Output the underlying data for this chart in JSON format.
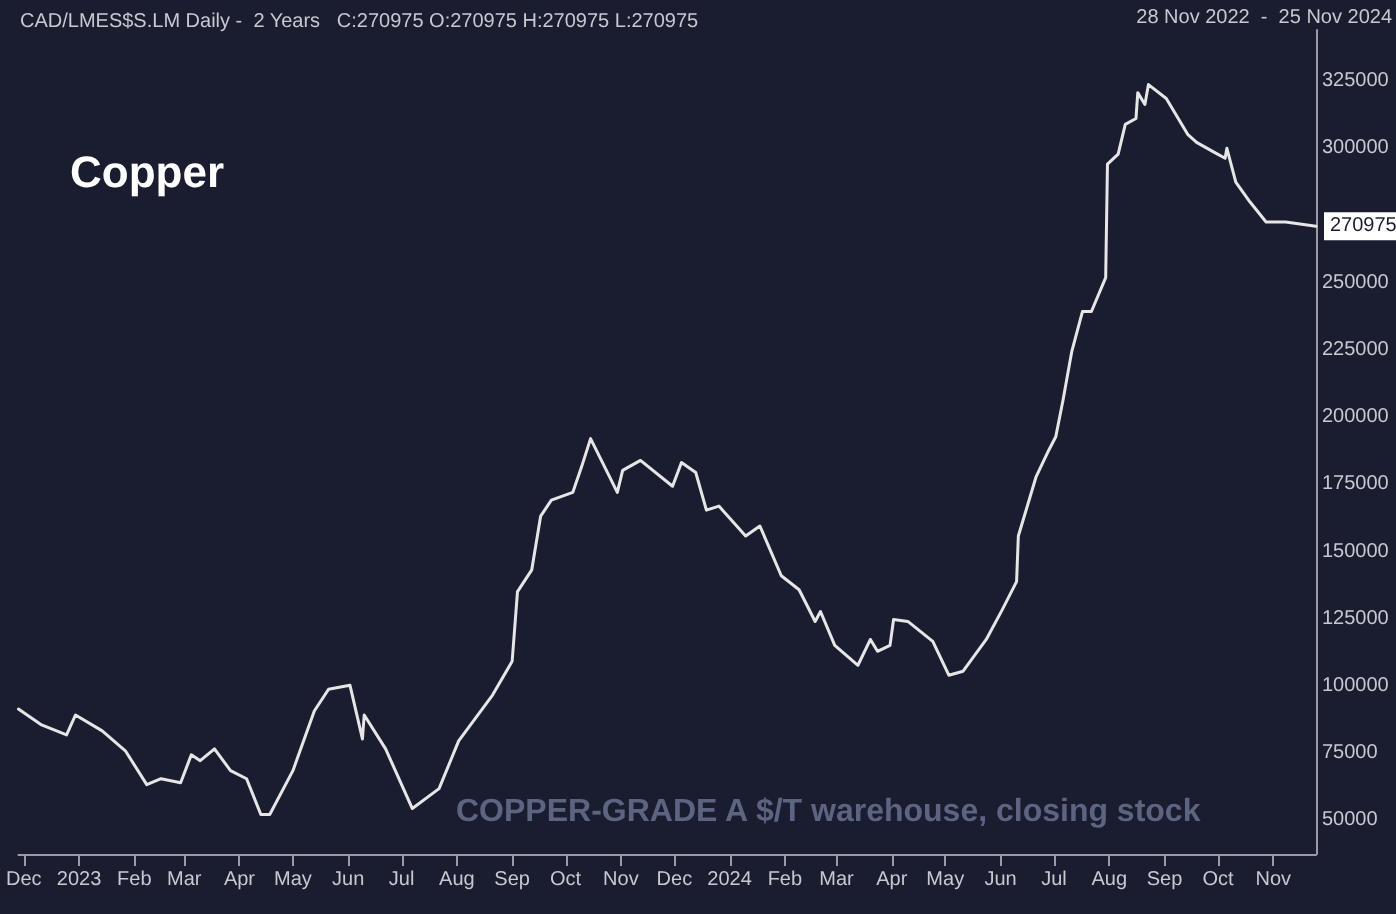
{
  "chart_data": {
    "type": "line",
    "title": "Copper",
    "subtitle": "CAD/LMES$S.LM Daily -  2 Years   C:270975 O:270975 H:270975 L:270975",
    "annotations": [
      "28 Nov 2022  -  25 Nov 2024",
      "COPPER-GRADE A $/T warehouse, closing stock",
      {
        "text": "270975",
        "x": "2024-11-25",
        "y": 270975
      }
    ],
    "series": [
      {
        "color": "#e6e6e6",
        "x": [
          "2022-11-28",
          "2022-12-11",
          "2022-12-25",
          "2022-12-30",
          "2023-01-14",
          "2023-01-27",
          "2023-02-08",
          "2023-02-16",
          "2023-02-27",
          "2023-03-05",
          "2023-03-10",
          "2023-03-18",
          "2023-03-27",
          "2023-04-05",
          "2023-04-13",
          "2023-04-18",
          "2023-05-01",
          "2023-05-13",
          "2023-05-21",
          "2023-06-02",
          "2023-06-09",
          "2023-06-10",
          "2023-06-22",
          "2023-07-07",
          "2023-07-22",
          "2023-08-02",
          "2023-08-21",
          "2023-09-01",
          "2023-09-04",
          "2023-09-12",
          "2023-09-17",
          "2023-09-23",
          "2023-10-05",
          "2023-10-10",
          "2023-10-15",
          "2023-10-30",
          "2023-11-02",
          "2023-11-12",
          "2023-11-30",
          "2023-12-05",
          "2023-12-13",
          "2023-12-19",
          "2023-12-26",
          "2024-01-10",
          "2024-01-18",
          "2024-01-30",
          "2024-02-09",
          "2024-02-18",
          "2024-02-21",
          "2024-02-29",
          "2024-03-13",
          "2024-03-20",
          "2024-03-24",
          "2024-03-31",
          "2024-04-02",
          "2024-04-10",
          "2024-04-24",
          "2024-05-03",
          "2024-05-11",
          "2024-05-24",
          "2024-06-02",
          "2024-06-10",
          "2024-06-11",
          "2024-06-21",
          "2024-06-28",
          "2024-07-02",
          "2024-07-06",
          "2024-07-11",
          "2024-07-17",
          "2024-07-22",
          "2024-07-30",
          "2024-07-31",
          "2024-08-06",
          "2024-08-10",
          "2024-08-16",
          "2024-08-17",
          "2024-08-21",
          "2024-08-23",
          "2024-09-02",
          "2024-09-14",
          "2024-09-19",
          "2024-09-29",
          "2024-10-05",
          "2024-10-06",
          "2024-10-11",
          "2024-10-19",
          "2024-10-28",
          "2024-11-08",
          "2024-11-25"
        ],
        "values": [
          91400,
          85500,
          81800,
          89200,
          83300,
          75900,
          63300,
          65500,
          64000,
          74400,
          72200,
          76600,
          68500,
          65500,
          52200,
          52200,
          68500,
          90700,
          98800,
          100300,
          80300,
          89200,
          76600,
          54400,
          61800,
          79600,
          96600,
          109200,
          135100,
          143200,
          163200,
          169100,
          172000,
          181600,
          192000,
          172000,
          180200,
          183900,
          174300,
          183100,
          179400,
          165400,
          166900,
          155800,
          159500,
          141000,
          135800,
          124000,
          127700,
          115100,
          107700,
          117300,
          112900,
          115100,
          124700,
          124000,
          116600,
          104000,
          105500,
          117300,
          128400,
          138800,
          155800,
          177900,
          187600,
          192700,
          206100,
          224500,
          239300,
          239300,
          251900,
          294100,
          297800,
          308900,
          311100,
          320700,
          316300,
          323700,
          318500,
          305200,
          302200,
          298500,
          296300,
          300000,
          287400,
          280000,
          272600,
          272600,
          270975
        ]
      }
    ],
    "xlim": [
      "2022-11-28",
      "2024-11-25"
    ],
    "xticks": [
      {
        "value": "2022-12-01",
        "label": "Dec"
      },
      {
        "value": "2023-01-01",
        "label": "2023"
      },
      {
        "value": "2023-02-01",
        "label": "Feb"
      },
      {
        "value": "2023-03-01",
        "label": "Mar"
      },
      {
        "value": "2023-04-01",
        "label": "Apr"
      },
      {
        "value": "2023-05-01",
        "label": "May"
      },
      {
        "value": "2023-06-01",
        "label": "Jun"
      },
      {
        "value": "2023-07-01",
        "label": "Jul"
      },
      {
        "value": "2023-08-01",
        "label": "Aug"
      },
      {
        "value": "2023-09-01",
        "label": "Sep"
      },
      {
        "value": "2023-10-01",
        "label": "Oct"
      },
      {
        "value": "2023-11-01",
        "label": "Nov"
      },
      {
        "value": "2023-12-01",
        "label": "Dec"
      },
      {
        "value": "2024-01-01",
        "label": "2024"
      },
      {
        "value": "2024-02-01",
        "label": "Feb"
      },
      {
        "value": "2024-03-01",
        "label": "Mar"
      },
      {
        "value": "2024-04-01",
        "label": "Apr"
      },
      {
        "value": "2024-05-01",
        "label": "May"
      },
      {
        "value": "2024-06-01",
        "label": "Jun"
      },
      {
        "value": "2024-07-01",
        "label": "Jul"
      },
      {
        "value": "2024-08-01",
        "label": "Aug"
      },
      {
        "value": "2024-09-01",
        "label": "Sep"
      },
      {
        "value": "2024-10-01",
        "label": "Oct"
      },
      {
        "value": "2024-11-01",
        "label": "Nov"
      }
    ],
    "ylim": [
      37500,
      344000
    ],
    "yticks": [
      50000,
      75000,
      100000,
      125000,
      150000,
      175000,
      200000,
      225000,
      250000,
      300000,
      325000
    ],
    "grid": false,
    "marker": "none",
    "line_style": "solid"
  }
}
